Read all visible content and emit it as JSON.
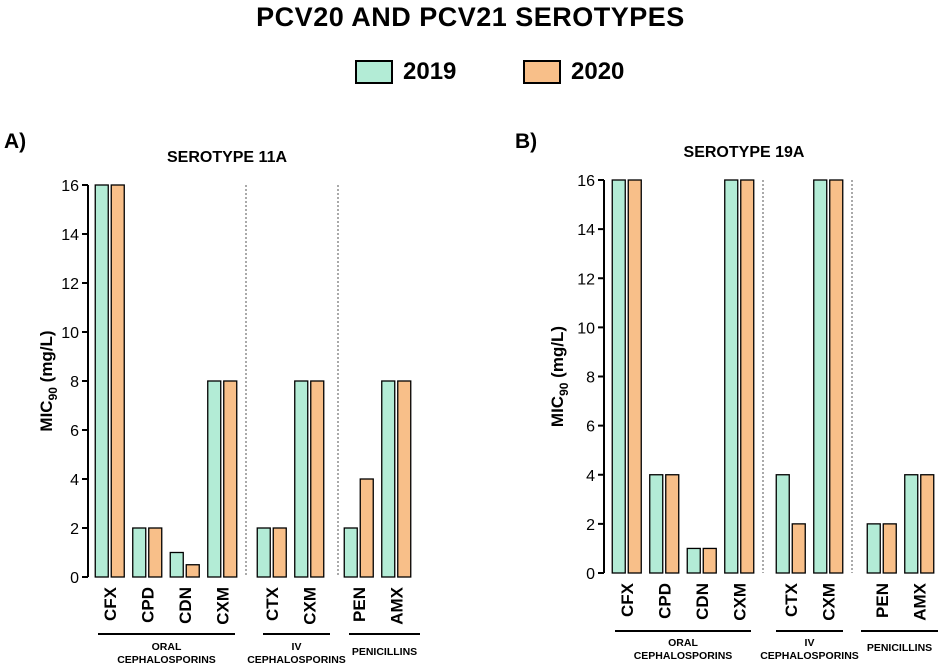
{
  "title": "PCV20 AND PCV21 SEROTYPES",
  "legend": [
    {
      "label": "2019",
      "color": "#b3ecd6"
    },
    {
      "label": "2020",
      "color": "#f8bf89"
    }
  ],
  "chart_data": [
    {
      "panel_label": "A)",
      "type": "bar",
      "title": "SEROTYPE 11A",
      "ylabel_main": "MIC",
      "ylabel_sub": "90",
      "ylabel_unit": " (mg/L)",
      "ylim": [
        0,
        16
      ],
      "yticks": [
        0,
        2,
        4,
        6,
        8,
        10,
        12,
        14,
        16
      ],
      "categories": [
        "CFX",
        "CPD",
        "CDN",
        "CXM",
        "CTX",
        "CXM",
        "PEN",
        "AMX"
      ],
      "series": [
        {
          "name": "2019",
          "values": [
            16,
            2,
            1,
            8,
            2,
            8,
            2,
            8
          ]
        },
        {
          "name": "2020",
          "values": [
            16,
            2,
            0.5,
            8,
            2,
            8,
            4,
            8
          ]
        }
      ],
      "groups": [
        {
          "lines": [
            "ORAL",
            "CEPHALOSPORINS"
          ],
          "range": [
            0,
            3
          ]
        },
        {
          "lines": [
            "IV",
            "CEPHALOSPORINS"
          ],
          "range": [
            4,
            5
          ]
        },
        {
          "lines": [
            "PENICILLINS"
          ],
          "range": [
            6,
            7
          ]
        }
      ]
    },
    {
      "panel_label": "B)",
      "type": "bar",
      "title": "SEROTYPE 19A",
      "ylabel_main": "MIC",
      "ylabel_sub": "90",
      "ylabel_unit": " (mg/L)",
      "ylim": [
        0,
        16
      ],
      "yticks": [
        0,
        2,
        4,
        6,
        8,
        10,
        12,
        14,
        16
      ],
      "categories": [
        "CFX",
        "CPD",
        "CDN",
        "CXM",
        "CTX",
        "CXM",
        "PEN",
        "AMX"
      ],
      "series": [
        {
          "name": "2019",
          "values": [
            16,
            4,
            1,
            16,
            4,
            16,
            2,
            4
          ]
        },
        {
          "name": "2020",
          "values": [
            16,
            4,
            1,
            16,
            2,
            16,
            2,
            4
          ]
        }
      ],
      "groups": [
        {
          "lines": [
            "ORAL",
            "CEPHALOSPORINS"
          ],
          "range": [
            0,
            3
          ]
        },
        {
          "lines": [
            "IV",
            "CEPHALOSPORINS"
          ],
          "range": [
            4,
            5
          ]
        },
        {
          "lines": [
            "PENICILLINS"
          ],
          "range": [
            6,
            7
          ]
        }
      ]
    }
  ]
}
